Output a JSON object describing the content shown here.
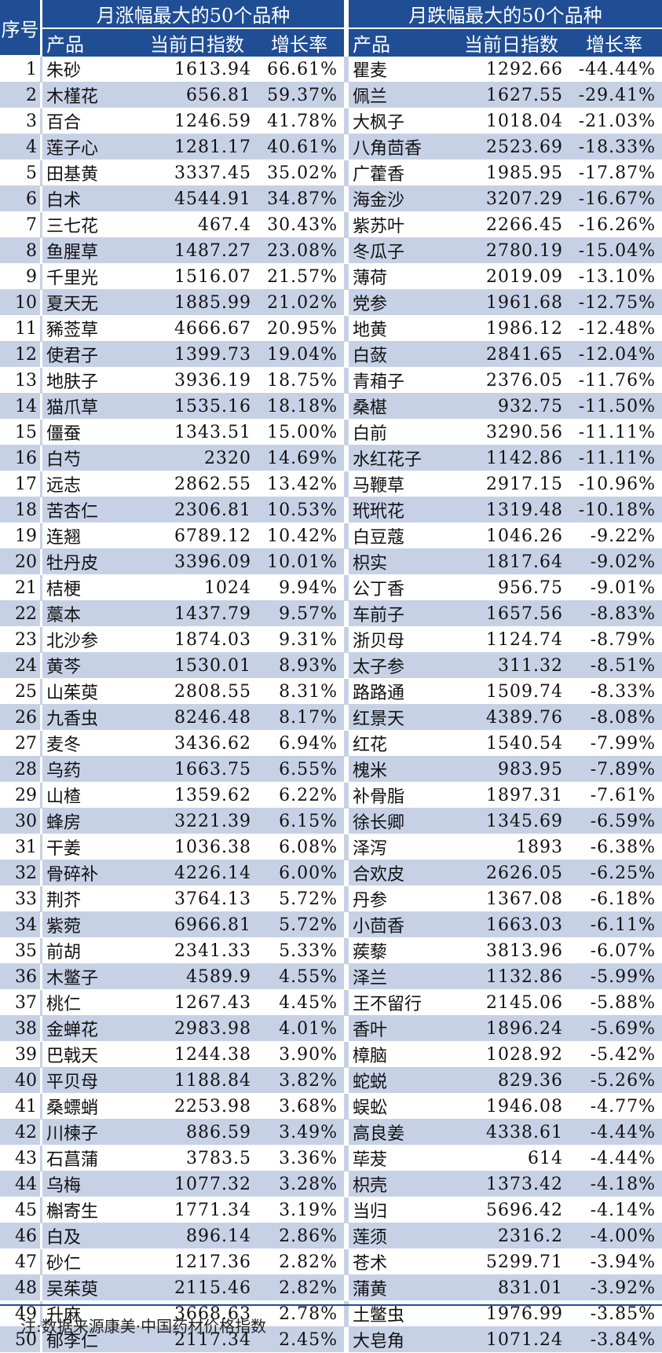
{
  "header": {
    "index": "序号",
    "left_title": "月涨幅最大的50个品种",
    "right_title": "月跌幅最大的50个品种",
    "col_name": "产品",
    "col_value": "当前日指数",
    "col_rate": "增长率"
  },
  "rows": [
    {
      "idx": "1",
      "l": [
        "朱砂",
        "1613.94",
        "66.61%"
      ],
      "r": [
        "瞿麦",
        "1292.66",
        "-44.44%"
      ]
    },
    {
      "idx": "2",
      "l": [
        "木槿花",
        "656.81",
        "59.37%"
      ],
      "r": [
        "佩兰",
        "1627.55",
        "-29.41%"
      ]
    },
    {
      "idx": "3",
      "l": [
        "百合",
        "1246.59",
        "41.78%"
      ],
      "r": [
        "大枫子",
        "1018.04",
        "-21.03%"
      ]
    },
    {
      "idx": "4",
      "l": [
        "莲子心",
        "1281.17",
        "40.61%"
      ],
      "r": [
        "八角茴香",
        "2523.69",
        "-18.33%"
      ]
    },
    {
      "idx": "5",
      "l": [
        "田基黄",
        "3337.45",
        "35.02%"
      ],
      "r": [
        "广藿香",
        "1985.95",
        "-17.87%"
      ]
    },
    {
      "idx": "6",
      "l": [
        "白术",
        "4544.91",
        "34.87%"
      ],
      "r": [
        "海金沙",
        "3207.29",
        "-16.67%"
      ]
    },
    {
      "idx": "7",
      "l": [
        "三七花",
        "467.4",
        "30.43%"
      ],
      "r": [
        "紫苏叶",
        "2266.45",
        "-16.26%"
      ]
    },
    {
      "idx": "8",
      "l": [
        "鱼腥草",
        "1487.27",
        "23.08%"
      ],
      "r": [
        "冬瓜子",
        "2780.19",
        "-15.04%"
      ]
    },
    {
      "idx": "9",
      "l": [
        "千里光",
        "1516.07",
        "21.57%"
      ],
      "r": [
        "薄荷",
        "2019.09",
        "-13.10%"
      ]
    },
    {
      "idx": "10",
      "l": [
        "夏天无",
        "1885.99",
        "21.02%"
      ],
      "r": [
        "党参",
        "1961.68",
        "-12.75%"
      ]
    },
    {
      "idx": "11",
      "l": [
        "豨莶草",
        "4666.67",
        "20.95%"
      ],
      "r": [
        "地黄",
        "1986.12",
        "-12.48%"
      ]
    },
    {
      "idx": "12",
      "l": [
        "使君子",
        "1399.73",
        "19.04%"
      ],
      "r": [
        "白蔹",
        "2841.65",
        "-12.04%"
      ]
    },
    {
      "idx": "13",
      "l": [
        "地肤子",
        "3936.19",
        "18.75%"
      ],
      "r": [
        "青葙子",
        "2376.05",
        "-11.76%"
      ]
    },
    {
      "idx": "14",
      "l": [
        "猫爪草",
        "1535.16",
        "18.18%"
      ],
      "r": [
        "桑椹",
        "932.75",
        "-11.50%"
      ]
    },
    {
      "idx": "15",
      "l": [
        "僵蚕",
        "1343.51",
        "15.00%"
      ],
      "r": [
        "白前",
        "3290.56",
        "-11.11%"
      ]
    },
    {
      "idx": "16",
      "l": [
        "白芍",
        "2320",
        "14.69%"
      ],
      "r": [
        "水红花子",
        "1142.86",
        "-11.11%"
      ]
    },
    {
      "idx": "17",
      "l": [
        "远志",
        "2862.55",
        "13.42%"
      ],
      "r": [
        "马鞭草",
        "2917.15",
        "-10.96%"
      ]
    },
    {
      "idx": "18",
      "l": [
        "苦杏仁",
        "2306.81",
        "10.53%"
      ],
      "r": [
        "玳玳花",
        "1319.48",
        "-10.18%"
      ]
    },
    {
      "idx": "19",
      "l": [
        "连翘",
        "6789.12",
        "10.42%"
      ],
      "r": [
        "白豆蔻",
        "1046.26",
        "-9.22%"
      ]
    },
    {
      "idx": "20",
      "l": [
        "牡丹皮",
        "3396.09",
        "10.01%"
      ],
      "r": [
        "枳实",
        "1817.64",
        "-9.02%"
      ]
    },
    {
      "idx": "21",
      "l": [
        "桔梗",
        "1024",
        "9.94%"
      ],
      "r": [
        "公丁香",
        "956.75",
        "-9.01%"
      ]
    },
    {
      "idx": "22",
      "l": [
        "藁本",
        "1437.79",
        "9.57%"
      ],
      "r": [
        "车前子",
        "1657.56",
        "-8.83%"
      ]
    },
    {
      "idx": "23",
      "l": [
        "北沙参",
        "1874.03",
        "9.31%"
      ],
      "r": [
        "浙贝母",
        "1124.74",
        "-8.79%"
      ]
    },
    {
      "idx": "24",
      "l": [
        "黄芩",
        "1530.01",
        "8.93%"
      ],
      "r": [
        "太子参",
        "311.32",
        "-8.51%"
      ]
    },
    {
      "idx": "25",
      "l": [
        "山茱萸",
        "2808.55",
        "8.31%"
      ],
      "r": [
        "路路通",
        "1509.74",
        "-8.33%"
      ]
    },
    {
      "idx": "26",
      "l": [
        "九香虫",
        "8246.48",
        "8.17%"
      ],
      "r": [
        "红景天",
        "4389.76",
        "-8.08%"
      ]
    },
    {
      "idx": "27",
      "l": [
        "麦冬",
        "3436.62",
        "6.94%"
      ],
      "r": [
        "红花",
        "1540.54",
        "-7.99%"
      ]
    },
    {
      "idx": "28",
      "l": [
        "乌药",
        "1663.75",
        "6.55%"
      ],
      "r": [
        "槐米",
        "983.95",
        "-7.89%"
      ]
    },
    {
      "idx": "29",
      "l": [
        "山楂",
        "1359.62",
        "6.22%"
      ],
      "r": [
        "补骨脂",
        "1897.31",
        "-7.61%"
      ]
    },
    {
      "idx": "30",
      "l": [
        "蜂房",
        "3221.39",
        "6.15%"
      ],
      "r": [
        "徐长卿",
        "1345.69",
        "-6.59%"
      ]
    },
    {
      "idx": "31",
      "l": [
        "干姜",
        "1036.38",
        "6.08%"
      ],
      "r": [
        "泽泻",
        "1893",
        "-6.38%"
      ]
    },
    {
      "idx": "32",
      "l": [
        "骨碎补",
        "4226.14",
        "6.00%"
      ],
      "r": [
        "合欢皮",
        "2626.05",
        "-6.25%"
      ]
    },
    {
      "idx": "33",
      "l": [
        "荆芥",
        "3764.13",
        "5.72%"
      ],
      "r": [
        "丹参",
        "1367.08",
        "-6.18%"
      ]
    },
    {
      "idx": "34",
      "l": [
        "紫菀",
        "6966.81",
        "5.72%"
      ],
      "r": [
        "小茴香",
        "1663.03",
        "-6.11%"
      ]
    },
    {
      "idx": "35",
      "l": [
        "前胡",
        "2341.33",
        "5.33%"
      ],
      "r": [
        "蒺藜",
        "3813.96",
        "-6.07%"
      ]
    },
    {
      "idx": "36",
      "l": [
        "木鳖子",
        "4589.9",
        "4.55%"
      ],
      "r": [
        "泽兰",
        "1132.86",
        "-5.99%"
      ]
    },
    {
      "idx": "37",
      "l": [
        "桃仁",
        "1267.43",
        "4.45%"
      ],
      "r": [
        "王不留行",
        "2145.06",
        "-5.88%"
      ]
    },
    {
      "idx": "38",
      "l": [
        "金蝉花",
        "2983.98",
        "4.01%"
      ],
      "r": [
        "香叶",
        "1896.24",
        "-5.69%"
      ]
    },
    {
      "idx": "39",
      "l": [
        "巴戟天",
        "1244.38",
        "3.90%"
      ],
      "r": [
        "樟脑",
        "1028.92",
        "-5.42%"
      ]
    },
    {
      "idx": "40",
      "l": [
        "平贝母",
        "1188.84",
        "3.82%"
      ],
      "r": [
        "蛇蜕",
        "829.36",
        "-5.26%"
      ]
    },
    {
      "idx": "41",
      "l": [
        "桑螵蛸",
        "2253.98",
        "3.68%"
      ],
      "r": [
        "蜈蚣",
        "1946.08",
        "-4.77%"
      ]
    },
    {
      "idx": "42",
      "l": [
        "川楝子",
        "886.59",
        "3.49%"
      ],
      "r": [
        "高良姜",
        "4338.61",
        "-4.44%"
      ]
    },
    {
      "idx": "43",
      "l": [
        "石菖蒲",
        "3783.5",
        "3.36%"
      ],
      "r": [
        "荜茇",
        "614",
        "-4.44%"
      ]
    },
    {
      "idx": "44",
      "l": [
        "乌梅",
        "1077.32",
        "3.28%"
      ],
      "r": [
        "枳壳",
        "1373.42",
        "-4.18%"
      ]
    },
    {
      "idx": "45",
      "l": [
        "槲寄生",
        "1771.34",
        "3.19%"
      ],
      "r": [
        "当归",
        "5696.42",
        "-4.14%"
      ]
    },
    {
      "idx": "46",
      "l": [
        "白及",
        "896.14",
        "2.86%"
      ],
      "r": [
        "莲须",
        "2316.2",
        "-4.00%"
      ]
    },
    {
      "idx": "47",
      "l": [
        "砂仁",
        "1217.36",
        "2.82%"
      ],
      "r": [
        "苍术",
        "5299.71",
        "-3.94%"
      ]
    },
    {
      "idx": "48",
      "l": [
        "吴茱萸",
        "2115.46",
        "2.82%"
      ],
      "r": [
        "蒲黄",
        "831.01",
        "-3.92%"
      ]
    },
    {
      "idx": "49",
      "l": [
        "升麻",
        "3668.63",
        "2.78%"
      ],
      "r": [
        "土鳖虫",
        "1976.99",
        "-3.85%"
      ]
    },
    {
      "idx": "50",
      "l": [
        "郁李仁",
        "2117.34",
        "2.45%"
      ],
      "r": [
        "大皂角",
        "1071.24",
        "-3.84%"
      ]
    }
  ],
  "footer": {
    "note": "注:数据来源康美·中国药材价格指数"
  }
}
